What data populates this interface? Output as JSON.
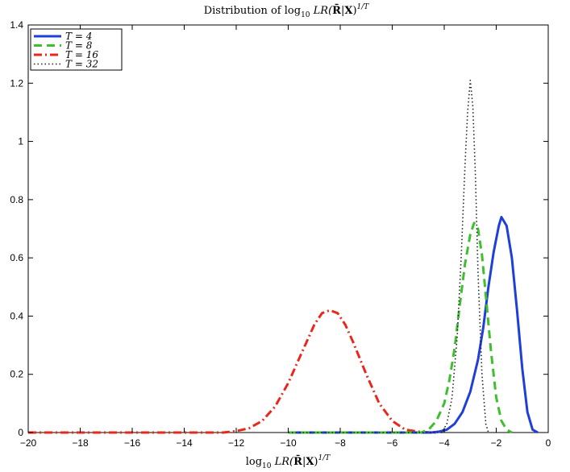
{
  "chart_data": {
    "type": "line",
    "title": "Distribution of log₁₀ LR(R̄|X)^{1/T}",
    "title_parts": {
      "pre": "Distribution of log",
      "sub": "10",
      "mid": " LR(",
      "bold": "R̄",
      "bar": "|",
      "bold2": "X",
      "post": ")",
      "sup": "1/T"
    },
    "xlabel": "log₁₀ LR(R̄|X)^{1/T}",
    "xlabel_parts": {
      "pre": "log",
      "sub": "10",
      "mid": " LR(",
      "bold": "R̄",
      "bar": "|",
      "bold2": "X",
      "post": ")",
      "sup": "1/T"
    },
    "ylabel": "",
    "xlim": [
      -20,
      0
    ],
    "ylim": [
      0,
      1.4
    ],
    "xticks": [
      -20,
      -18,
      -16,
      -14,
      -12,
      -10,
      -8,
      -6,
      -4,
      -2,
      0
    ],
    "yticks": [
      0,
      0.2,
      0.4,
      0.6,
      0.8,
      1,
      1.2,
      1.4
    ],
    "grid": false,
    "legend_position": "top-left",
    "series": [
      {
        "name": "T = 4",
        "color": "#1f3fd9",
        "style": "solid",
        "x": [
          -10,
          -6,
          -4.5,
          -4.2,
          -3.9,
          -3.6,
          -3.3,
          -3.0,
          -2.7,
          -2.5,
          -2.3,
          -2.1,
          -1.9,
          -1.8,
          -1.6,
          -1.4,
          -1.2,
          -1.0,
          -0.8,
          -0.6,
          -0.4
        ],
        "values": [
          0,
          0,
          0,
          0.003,
          0.01,
          0.03,
          0.07,
          0.14,
          0.25,
          0.36,
          0.5,
          0.62,
          0.71,
          0.74,
          0.71,
          0.6,
          0.42,
          0.22,
          0.07,
          0.01,
          0
        ]
      },
      {
        "name": "T = 8",
        "color": "#3fbf30",
        "style": "dashed",
        "x": [
          -10,
          -6,
          -4.9,
          -4.6,
          -4.3,
          -4.0,
          -3.8,
          -3.6,
          -3.4,
          -3.2,
          -3.0,
          -2.85,
          -2.7,
          -2.55,
          -2.4,
          -2.2,
          -2.0,
          -1.8,
          -1.6,
          -1.4
        ],
        "values": [
          0,
          0,
          0,
          0.01,
          0.04,
          0.1,
          0.18,
          0.29,
          0.44,
          0.58,
          0.68,
          0.72,
          0.7,
          0.61,
          0.47,
          0.28,
          0.12,
          0.04,
          0.01,
          0
        ]
      },
      {
        "name": "T = 16",
        "color": "#e8281c",
        "style": "dashdot",
        "x": [
          -20,
          -12.5,
          -12.0,
          -11.5,
          -11.0,
          -10.5,
          -10.0,
          -9.5,
          -9.0,
          -8.7,
          -8.4,
          -8.1,
          -7.8,
          -7.5,
          -7.0,
          -6.5,
          -6.0,
          -5.5,
          -5.0,
          -4.5,
          -4.2
        ],
        "values": [
          0,
          0,
          0.005,
          0.015,
          0.04,
          0.09,
          0.17,
          0.27,
          0.37,
          0.41,
          0.42,
          0.41,
          0.37,
          0.31,
          0.2,
          0.1,
          0.04,
          0.01,
          0.003,
          0,
          0
        ]
      },
      {
        "name": "T = 32",
        "color": "#222222",
        "style": "dotted",
        "x": [
          -10,
          -5,
          -4.1,
          -3.9,
          -3.7,
          -3.5,
          -3.35,
          -3.2,
          -3.1,
          -3.0,
          -2.9,
          -2.8,
          -2.7,
          -2.55,
          -2.4,
          -2.3
        ],
        "values": [
          0,
          0,
          0,
          0.03,
          0.12,
          0.33,
          0.6,
          0.92,
          1.1,
          1.21,
          1.12,
          0.88,
          0.55,
          0.2,
          0.03,
          0
        ]
      }
    ]
  }
}
